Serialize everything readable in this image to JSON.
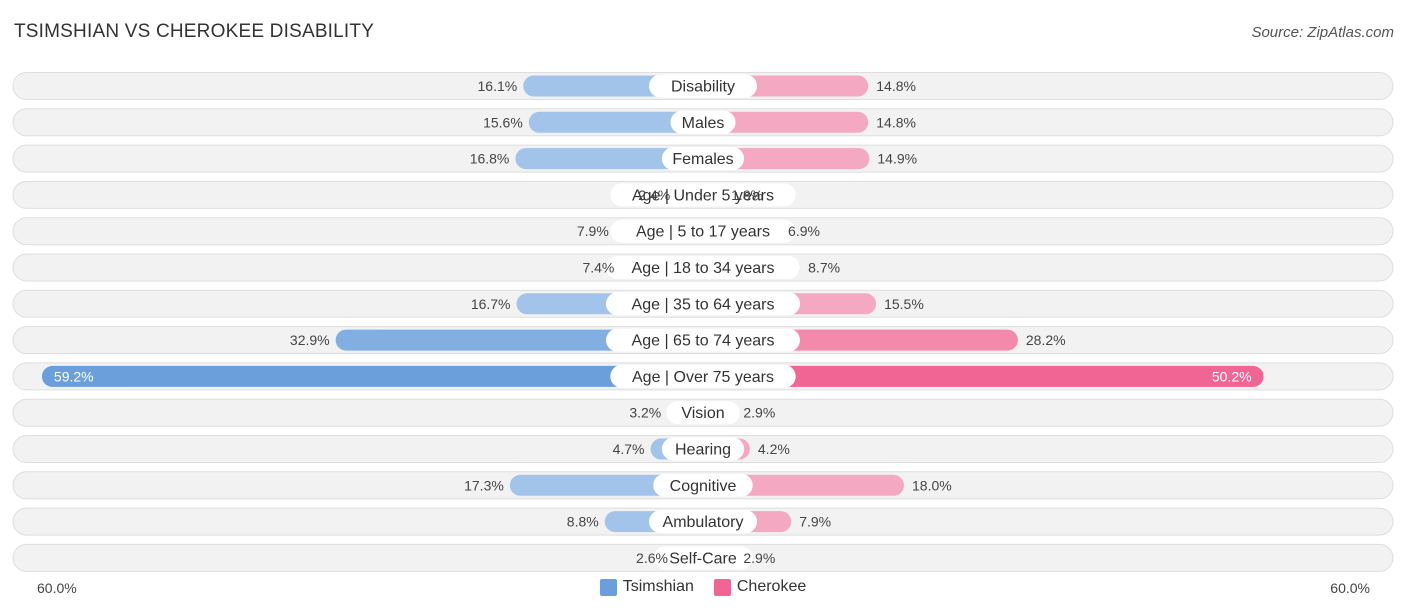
{
  "header": {
    "title": "TSIMSHIAN VS CHEROKEE DISABILITY",
    "source": "Source: ZipAtlas.com"
  },
  "chart_data": {
    "type": "bar",
    "orientation": "horizontal-diverging",
    "title": "TSIMSHIAN VS CHEROKEE DISABILITY",
    "categories": [
      "Disability",
      "Males",
      "Females",
      "Age | Under 5 years",
      "Age | 5 to 17 years",
      "Age | 18 to 34 years",
      "Age | 35 to 64 years",
      "Age | 65 to 74 years",
      "Age | Over 75 years",
      "Vision",
      "Hearing",
      "Cognitive",
      "Ambulatory",
      "Self-Care"
    ],
    "series": [
      {
        "name": "Tsimshian",
        "color": "#6a9fdc",
        "values": [
          16.1,
          15.6,
          16.8,
          2.4,
          7.9,
          7.4,
          16.7,
          32.9,
          59.2,
          3.2,
          4.7,
          17.3,
          8.8,
          2.6
        ],
        "labels": [
          "16.1%",
          "15.6%",
          "16.8%",
          "2.4%",
          "7.9%",
          "7.4%",
          "16.7%",
          "32.9%",
          "59.2%",
          "3.2%",
          "4.7%",
          "17.3%",
          "8.8%",
          "2.6%"
        ]
      },
      {
        "name": "Cherokee",
        "color": "#f06593",
        "values": [
          14.8,
          14.8,
          14.9,
          1.8,
          6.9,
          8.7,
          15.5,
          28.2,
          50.2,
          2.9,
          4.2,
          18.0,
          7.9,
          2.9
        ],
        "labels": [
          "14.8%",
          "14.8%",
          "14.9%",
          "1.8%",
          "6.9%",
          "8.7%",
          "15.5%",
          "28.2%",
          "50.2%",
          "2.9%",
          "4.2%",
          "18.0%",
          "7.9%",
          "2.9%"
        ]
      }
    ],
    "xlim": [
      0,
      60
    ],
    "axis_labels": {
      "left": "60.0%",
      "right": "60.0%"
    },
    "legend_position": "bottom-center"
  }
}
